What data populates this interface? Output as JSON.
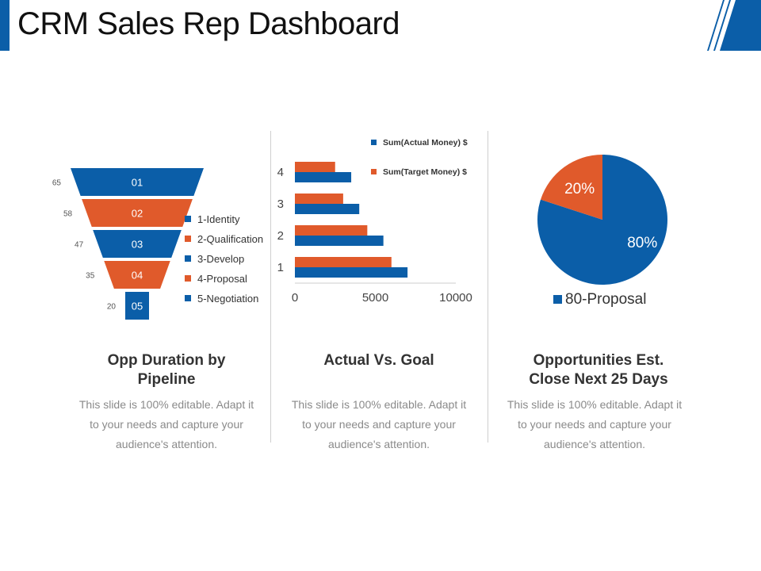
{
  "title": "CRM Sales Rep Dashboard",
  "colors": {
    "blue": "#0b5ea8",
    "orange": "#e05a2b",
    "grey_text": "#8a8a8a"
  },
  "panels": [
    {
      "heading_line1": "Opp Duration by",
      "heading_line2": "Pipeline",
      "desc_line1": "This slide is 100% editable. Adapt it",
      "desc_line2": "to your needs and capture your",
      "desc_line3": "audience's attention."
    },
    {
      "heading_line1": "Actual Vs. Goal",
      "heading_line2": "",
      "desc_line1": "This slide is 100% editable. Adapt it",
      "desc_line2": "to your needs and capture your",
      "desc_line3": "audience's attention."
    },
    {
      "heading_line1": "Opportunities Est.",
      "heading_line2": "Close Next 25 Days",
      "desc_line1": "This slide is 100% editable. Adapt it",
      "desc_line2": "to your needs and capture your",
      "desc_line3": "audience's attention."
    }
  ],
  "chart_data": [
    {
      "type": "funnel",
      "stages": [
        "01",
        "02",
        "03",
        "04",
        "05"
      ],
      "values": [
        65,
        58,
        47,
        35,
        20
      ],
      "legend": [
        "1-Identity",
        "2-Qualification",
        "3-Develop",
        "4-Proposal",
        "5-Negotiation"
      ],
      "colors": [
        "#0b5ea8",
        "#e05a2b",
        "#0b5ea8",
        "#e05a2b",
        "#0b5ea8"
      ]
    },
    {
      "type": "bar",
      "orientation": "horizontal",
      "categories": [
        "1",
        "2",
        "3",
        "4"
      ],
      "series": [
        {
          "name": "Sum(Actual Money) $",
          "values": [
            7000,
            5500,
            4000,
            3500
          ],
          "color": "#0b5ea8"
        },
        {
          "name": "Sum(Target Money) $",
          "values": [
            6000,
            4500,
            3000,
            2500
          ],
          "color": "#e05a2b"
        }
      ],
      "xlim": [
        0,
        10000
      ],
      "xticks": [
        "0",
        "5000",
        "10000"
      ],
      "legend_position": "top-right"
    },
    {
      "type": "pie",
      "slices": [
        {
          "label": "80%",
          "value": 80,
          "color": "#0b5ea8"
        },
        {
          "label": "20%",
          "value": 20,
          "color": "#e05a2b"
        }
      ],
      "legend": [
        "80-Proposal"
      ],
      "legend_position": "bottom"
    }
  ]
}
